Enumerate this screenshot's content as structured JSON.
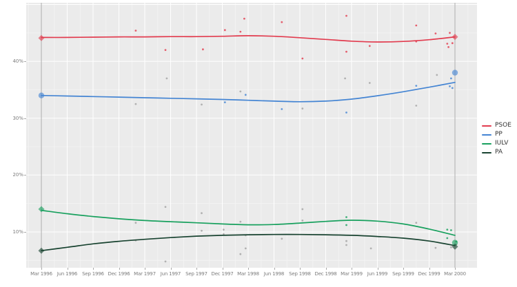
{
  "figure": {
    "title": "",
    "description": "Polling trend chart for Andalusian parties between Mar 1996 and Mar 2000 elections"
  },
  "legend": {
    "position": "right",
    "items": [
      {
        "label": "PSOE",
        "color": "#e23b4e"
      },
      {
        "label": "PP",
        "color": "#4384d3"
      },
      {
        "label": "IULV",
        "color": "#17a05d"
      },
      {
        "label": "PA",
        "color": "#17422f"
      }
    ]
  },
  "chart_data": {
    "type": "line",
    "title": "",
    "xlabel": "",
    "ylabel": "",
    "grid": true,
    "legend_position": "right",
    "panel_background": "#ebebeb",
    "grid_major_color": "#ffffff",
    "grid_minor_color": "#f4f4f4",
    "reference_line_color": "#9e9e9e",
    "tick_text_color": "#7b7b7b",
    "other_polls_color": "#999999",
    "x_tick_labels": [
      "Mar 1996",
      "Jun 1996",
      "Sep 1996",
      "Dec 1996",
      "Mar 1997",
      "Jun 1997",
      "Sep 1997",
      "Dec 1997",
      "Mar 1998",
      "Jun 1998",
      "Sep 1998",
      "Dec 1998",
      "Mar 1999",
      "Jun 1999",
      "Sep 1999",
      "Dec 1999",
      "Mar 2000"
    ],
    "y_tick_values": [
      40,
      30,
      20,
      10
    ],
    "y_tick_labels": [
      "40%",
      "30%",
      "20%",
      "10%"
    ],
    "y_minor_values": [
      45,
      35,
      25,
      15,
      5
    ],
    "ylim": [
      3.7,
      50.3
    ],
    "xlim_quarter_index": [
      -0.59,
      16.85
    ],
    "reference_lines_x": [
      0,
      16
    ],
    "series": [
      {
        "name": "PSOE",
        "color": "#e23b4e",
        "trend": [
          44.2,
          44.2,
          44.25,
          44.3,
          44.3,
          44.35,
          44.35,
          44.4,
          44.5,
          44.4,
          44.15,
          43.85,
          43.55,
          43.4,
          43.5,
          43.8,
          44.3
        ],
        "polls": [
          [
            3.65,
            45.4
          ],
          [
            4.8,
            42.0
          ],
          [
            6.25,
            42.1
          ],
          [
            7.1,
            45.5
          ],
          [
            7.7,
            45.2
          ],
          [
            7.85,
            47.5
          ],
          [
            9.3,
            46.9
          ],
          [
            10.1,
            40.5
          ],
          [
            11.8,
            48.0
          ],
          [
            11.8,
            41.7
          ],
          [
            12.7,
            42.7
          ],
          [
            14.5,
            46.3
          ],
          [
            14.5,
            43.5
          ],
          [
            15.25,
            44.9
          ],
          [
            15.7,
            43.1
          ],
          [
            15.75,
            42.5
          ],
          [
            15.8,
            45.0
          ],
          [
            15.9,
            43.2
          ]
        ]
      },
      {
        "name": "PP",
        "color": "#4384d3",
        "trend": [
          34.0,
          33.9,
          33.8,
          33.7,
          33.6,
          33.5,
          33.4,
          33.3,
          33.15,
          33.0,
          32.9,
          33.0,
          33.35,
          33.95,
          34.65,
          35.45,
          36.3
        ],
        "polls": [
          [
            7.1,
            32.8
          ],
          [
            7.9,
            34.1
          ],
          [
            9.3,
            31.6
          ],
          [
            11.8,
            31.0
          ],
          [
            14.5,
            35.7
          ],
          [
            15.8,
            35.6
          ],
          [
            15.9,
            35.3
          ],
          [
            15.85,
            37.0
          ]
        ]
      },
      {
        "name": "IULV",
        "color": "#17a05d",
        "trend": [
          13.8,
          13.2,
          12.7,
          12.3,
          12.0,
          11.8,
          11.6,
          11.4,
          11.25,
          11.3,
          11.55,
          11.85,
          12.05,
          11.9,
          11.4,
          10.5,
          9.4
        ],
        "polls": [
          [
            11.8,
            12.6
          ],
          [
            11.8,
            11.2
          ],
          [
            15.7,
            10.4
          ],
          [
            15.85,
            10.3
          ],
          [
            15.7,
            8.9
          ],
          [
            16.05,
            8.3
          ]
        ]
      },
      {
        "name": "PA",
        "color": "#17422f",
        "trend": [
          6.7,
          7.3,
          7.9,
          8.35,
          8.7,
          9.0,
          9.25,
          9.4,
          9.5,
          9.55,
          9.55,
          9.5,
          9.4,
          9.2,
          8.9,
          8.4,
          7.6
        ],
        "polls": []
      }
    ],
    "other_polls": [
      [
        3.65,
        32.5
      ],
      [
        4.85,
        37.0
      ],
      [
        6.2,
        32.4
      ],
      [
        7.7,
        34.7
      ],
      [
        10.1,
        31.7
      ],
      [
        11.75,
        37.0
      ],
      [
        12.7,
        36.2
      ],
      [
        14.5,
        32.2
      ],
      [
        15.3,
        37.6
      ],
      [
        3.65,
        11.6
      ],
      [
        3.65,
        8.5
      ],
      [
        4.8,
        14.4
      ],
      [
        4.8,
        4.8
      ],
      [
        6.2,
        13.3
      ],
      [
        6.2,
        10.2
      ],
      [
        7.05,
        10.4
      ],
      [
        7.05,
        9.6
      ],
      [
        7.7,
        11.8
      ],
      [
        7.7,
        6.1
      ],
      [
        7.9,
        9.4
      ],
      [
        7.9,
        7.1
      ],
      [
        9.3,
        8.8
      ],
      [
        10.1,
        14.0
      ],
      [
        10.1,
        12.0
      ],
      [
        11.8,
        8.4
      ],
      [
        11.8,
        7.7
      ],
      [
        12.75,
        7.1
      ],
      [
        14.5,
        11.6
      ],
      [
        15.25,
        7.2
      ],
      [
        15.85,
        7.3
      ],
      [
        16.05,
        7.8
      ]
    ],
    "election_markers": [
      {
        "date": "Mar 1996",
        "q": 0,
        "markers": [
          {
            "series": "PSOE",
            "value": 44.1,
            "shape": "diamond"
          },
          {
            "series": "PP",
            "value": 34.0,
            "shape": "circle"
          },
          {
            "series": "IULV",
            "value": 14.0,
            "shape": "diamond"
          },
          {
            "series": "PA",
            "value": 6.7,
            "shape": "diamond"
          }
        ]
      },
      {
        "date": "Mar 2000",
        "q": 16,
        "markers": [
          {
            "series": "PSOE",
            "value": 44.3,
            "shape": "diamond"
          },
          {
            "series": "PP",
            "value": 38.0,
            "shape": "circle"
          },
          {
            "series": "IULV",
            "value": 8.1,
            "shape": "circle"
          },
          {
            "series": "PA",
            "value": 7.4,
            "shape": "diamond"
          }
        ]
      }
    ]
  }
}
